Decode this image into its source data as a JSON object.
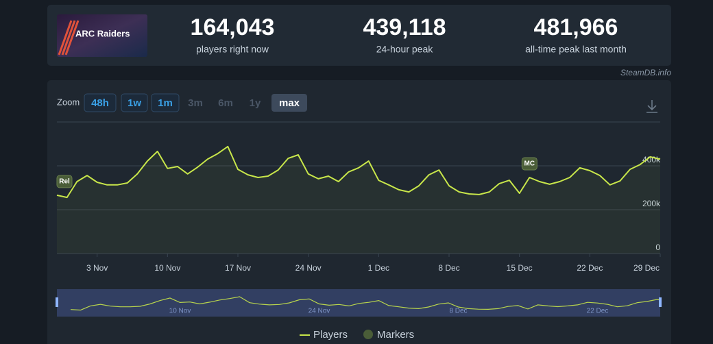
{
  "game": {
    "logo": "ARC Raiders"
  },
  "stats": [
    {
      "value": "164,043",
      "label": "players right now"
    },
    {
      "value": "439,118",
      "label": "24-hour peak"
    },
    {
      "value": "481,966",
      "label": "all-time peak last month"
    }
  ],
  "source": "SteamDB.info",
  "zoom": {
    "label": "Zoom",
    "options": [
      {
        "label": "48h",
        "state": "enabled"
      },
      {
        "label": "1w",
        "state": "enabled"
      },
      {
        "label": "1m",
        "state": "enabled"
      },
      {
        "label": "3m",
        "state": "disabled"
      },
      {
        "label": "6m",
        "state": "disabled"
      },
      {
        "label": "1y",
        "state": "disabled"
      },
      {
        "label": "max",
        "state": "active"
      }
    ]
  },
  "chart_data": {
    "type": "line",
    "x": [
      "30 Oct",
      "31 Oct",
      "1 Nov",
      "2 Nov",
      "3 Nov",
      "4 Nov",
      "5 Nov",
      "6 Nov",
      "7 Nov",
      "8 Nov",
      "9 Nov",
      "10 Nov",
      "11 Nov",
      "12 Nov",
      "13 Nov",
      "14 Nov",
      "15 Nov",
      "16 Nov",
      "17 Nov",
      "18 Nov",
      "19 Nov",
      "20 Nov",
      "21 Nov",
      "22 Nov",
      "23 Nov",
      "24 Nov",
      "25 Nov",
      "26 Nov",
      "27 Nov",
      "28 Nov",
      "29 Nov",
      "30 Nov",
      "1 Dec",
      "2 Dec",
      "3 Dec",
      "4 Dec",
      "5 Dec",
      "6 Dec",
      "7 Dec",
      "8 Dec",
      "9 Dec",
      "10 Dec",
      "11 Dec",
      "12 Dec",
      "13 Dec",
      "14 Dec",
      "15 Dec",
      "16 Dec",
      "17 Dec",
      "18 Dec",
      "19 Dec",
      "20 Dec",
      "21 Dec",
      "22 Dec",
      "23 Dec",
      "24 Dec",
      "25 Dec",
      "26 Dec",
      "27 Dec",
      "28 Dec",
      "29 Dec"
    ],
    "series": [
      {
        "name": "Players",
        "color": "#c8e64a",
        "values": [
          266000,
          256000,
          328000,
          356000,
          325000,
          313000,
          313000,
          322000,
          363000,
          422000,
          466000,
          388000,
          397000,
          363000,
          394000,
          431000,
          456000,
          488000,
          384000,
          359000,
          347000,
          353000,
          381000,
          434000,
          450000,
          363000,
          341000,
          353000,
          328000,
          372000,
          391000,
          422000,
          334000,
          313000,
          291000,
          281000,
          309000,
          359000,
          381000,
          309000,
          281000,
          272000,
          269000,
          281000,
          319000,
          334000,
          275000,
          347000,
          328000,
          316000,
          328000,
          347000,
          391000,
          378000,
          356000,
          313000,
          331000,
          384000,
          406000,
          441000,
          430000
        ]
      }
    ],
    "ylim": [
      0,
      600000
    ],
    "yticks": [
      0,
      {
        "value": 200000,
        "label": "200k"
      },
      {
        "value": 400000,
        "label": "400k"
      }
    ],
    "xticks": [
      "3 Nov",
      "10 Nov",
      "17 Nov",
      "24 Nov",
      "1 Dec",
      "8 Dec",
      "15 Dec",
      "22 Dec",
      "29 Dec"
    ],
    "grid": true,
    "markers": {
      "name": "Markers",
      "color": "#4a5d38",
      "items": [
        {
          "x": "30 Oct",
          "label": "Rel"
        },
        {
          "x": "16 Dec",
          "label": "MC"
        }
      ]
    },
    "navigator_xticks": [
      "10 Nov",
      "24 Nov",
      "8 Dec",
      "22 Dec"
    ]
  }
}
